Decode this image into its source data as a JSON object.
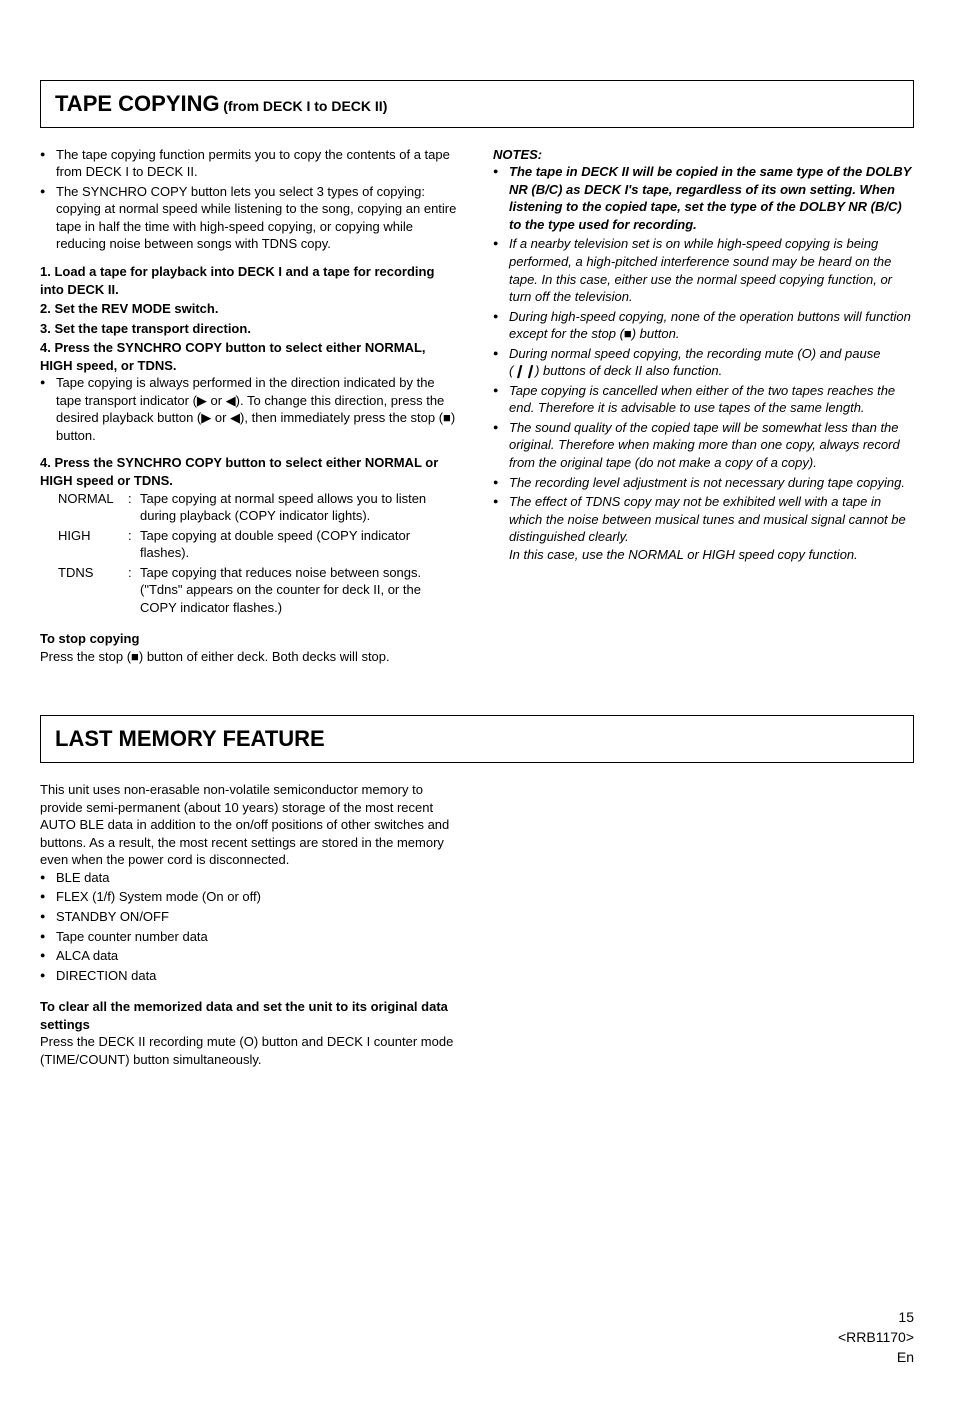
{
  "sec1": {
    "title": "TAPE COPYING",
    "subtitle": "(from DECK I to DECK II)",
    "intro": [
      "The tape copying function permits you to copy the contents of a tape from DECK I to DECK II.",
      "The SYNCHRO COPY button lets you select 3 types of copying: copying at normal speed while listening to the song, copying an entire tape in half the time with high-speed copying, or copying while reducing noise between songs with TDNS copy."
    ],
    "steps": {
      "s1": "1. Load a tape for playback into DECK I and a tape for recording into DECK II.",
      "s2": "2. Set the REV MODE switch.",
      "s3": "3. Set the tape transport direction.",
      "s4a": "4. Press the SYNCHRO COPY button to select either NORMAL, HIGH speed, or TDNS.",
      "s4a_sub": "Tape copying is always performed in the direction indicated by the tape transport indicator (▶ or ◀). To change this direction, press the desired playback button (▶ or ◀), then immediately press the stop (■) button.",
      "s4b": "4. Press the SYNCHRO COPY button to select either NORMAL or HIGH speed or TDNS."
    },
    "modes": [
      {
        "label": "NORMAL",
        "desc": "Tape copying at normal speed allows you to listen during playback (COPY indicator lights)."
      },
      {
        "label": "HIGH",
        "desc": "Tape copying at double speed (COPY indicator flashes)."
      },
      {
        "label": "TDNS",
        "desc": "Tape copying that reduces noise between songs. (\"Tdns\" appears on the counter for deck II, or the COPY indicator flashes.)"
      }
    ],
    "stop_head": "To stop copying",
    "stop_body": "Press the stop (■) button of either deck. Both decks will stop.",
    "notes_head": "NOTES:",
    "notes": [
      {
        "bold": true,
        "text": "The tape in DECK II will be copied in the same type of the DOLBY NR (B/C) as DECK I's tape, regardless of its own setting. When listening to the copied tape, set the type of the DOLBY NR (B/C) to the type used for recording."
      },
      {
        "bold": false,
        "text": "If a nearby television set is on while high-speed copying is being performed, a high-pitched interference sound may be heard on the tape. In this case, either use the normal speed copying function, or turn off the television."
      },
      {
        "bold": false,
        "text": "During high-speed copying, none of the operation buttons will function except for the stop (■) button."
      },
      {
        "bold": false,
        "text": "During normal speed copying, the recording mute (O) and pause (❙❙) buttons of deck II also function."
      },
      {
        "bold": false,
        "text": "Tape copying is cancelled when either of the two tapes reaches the end. Therefore it is advisable to use tapes of the same length."
      },
      {
        "bold": false,
        "text": "The sound quality of the copied tape will be somewhat less than the original. Therefore when making more than one copy, always record from the original tape (do not make a copy of a copy)."
      },
      {
        "bold": false,
        "text": "The recording level adjustment is not necessary during tape copying."
      },
      {
        "bold": false,
        "text": "The effect of TDNS copy may not be exhibited well with a tape in which the noise between musical tunes and musical signal cannot be distinguished clearly.\nIn this case, use the NORMAL or HIGH speed copy function."
      }
    ]
  },
  "sec2": {
    "title": "LAST MEMORY FEATURE",
    "body": "This unit uses non-erasable non-volatile semiconductor memory to provide semi-permanent (about 10 years) storage of the most recent AUTO BLE data in addition to the on/off positions of other switches and buttons. As a result, the most recent settings are stored in the memory even when the power cord is disconnected.",
    "items": [
      "BLE data",
      "FLEX (1/f) System mode (On or off)",
      "STANDBY ON/OFF",
      "Tape counter number data",
      "ALCA data",
      "DIRECTION data"
    ],
    "clear_head": "To clear all the memorized data and set the unit to its original data settings",
    "clear_body": "Press the DECK II recording mute (O) button and DECK I counter mode (TIME/COUNT) button simultaneously."
  },
  "footer": {
    "page": "15",
    "code": "<RRB1170>",
    "lang": "En"
  }
}
